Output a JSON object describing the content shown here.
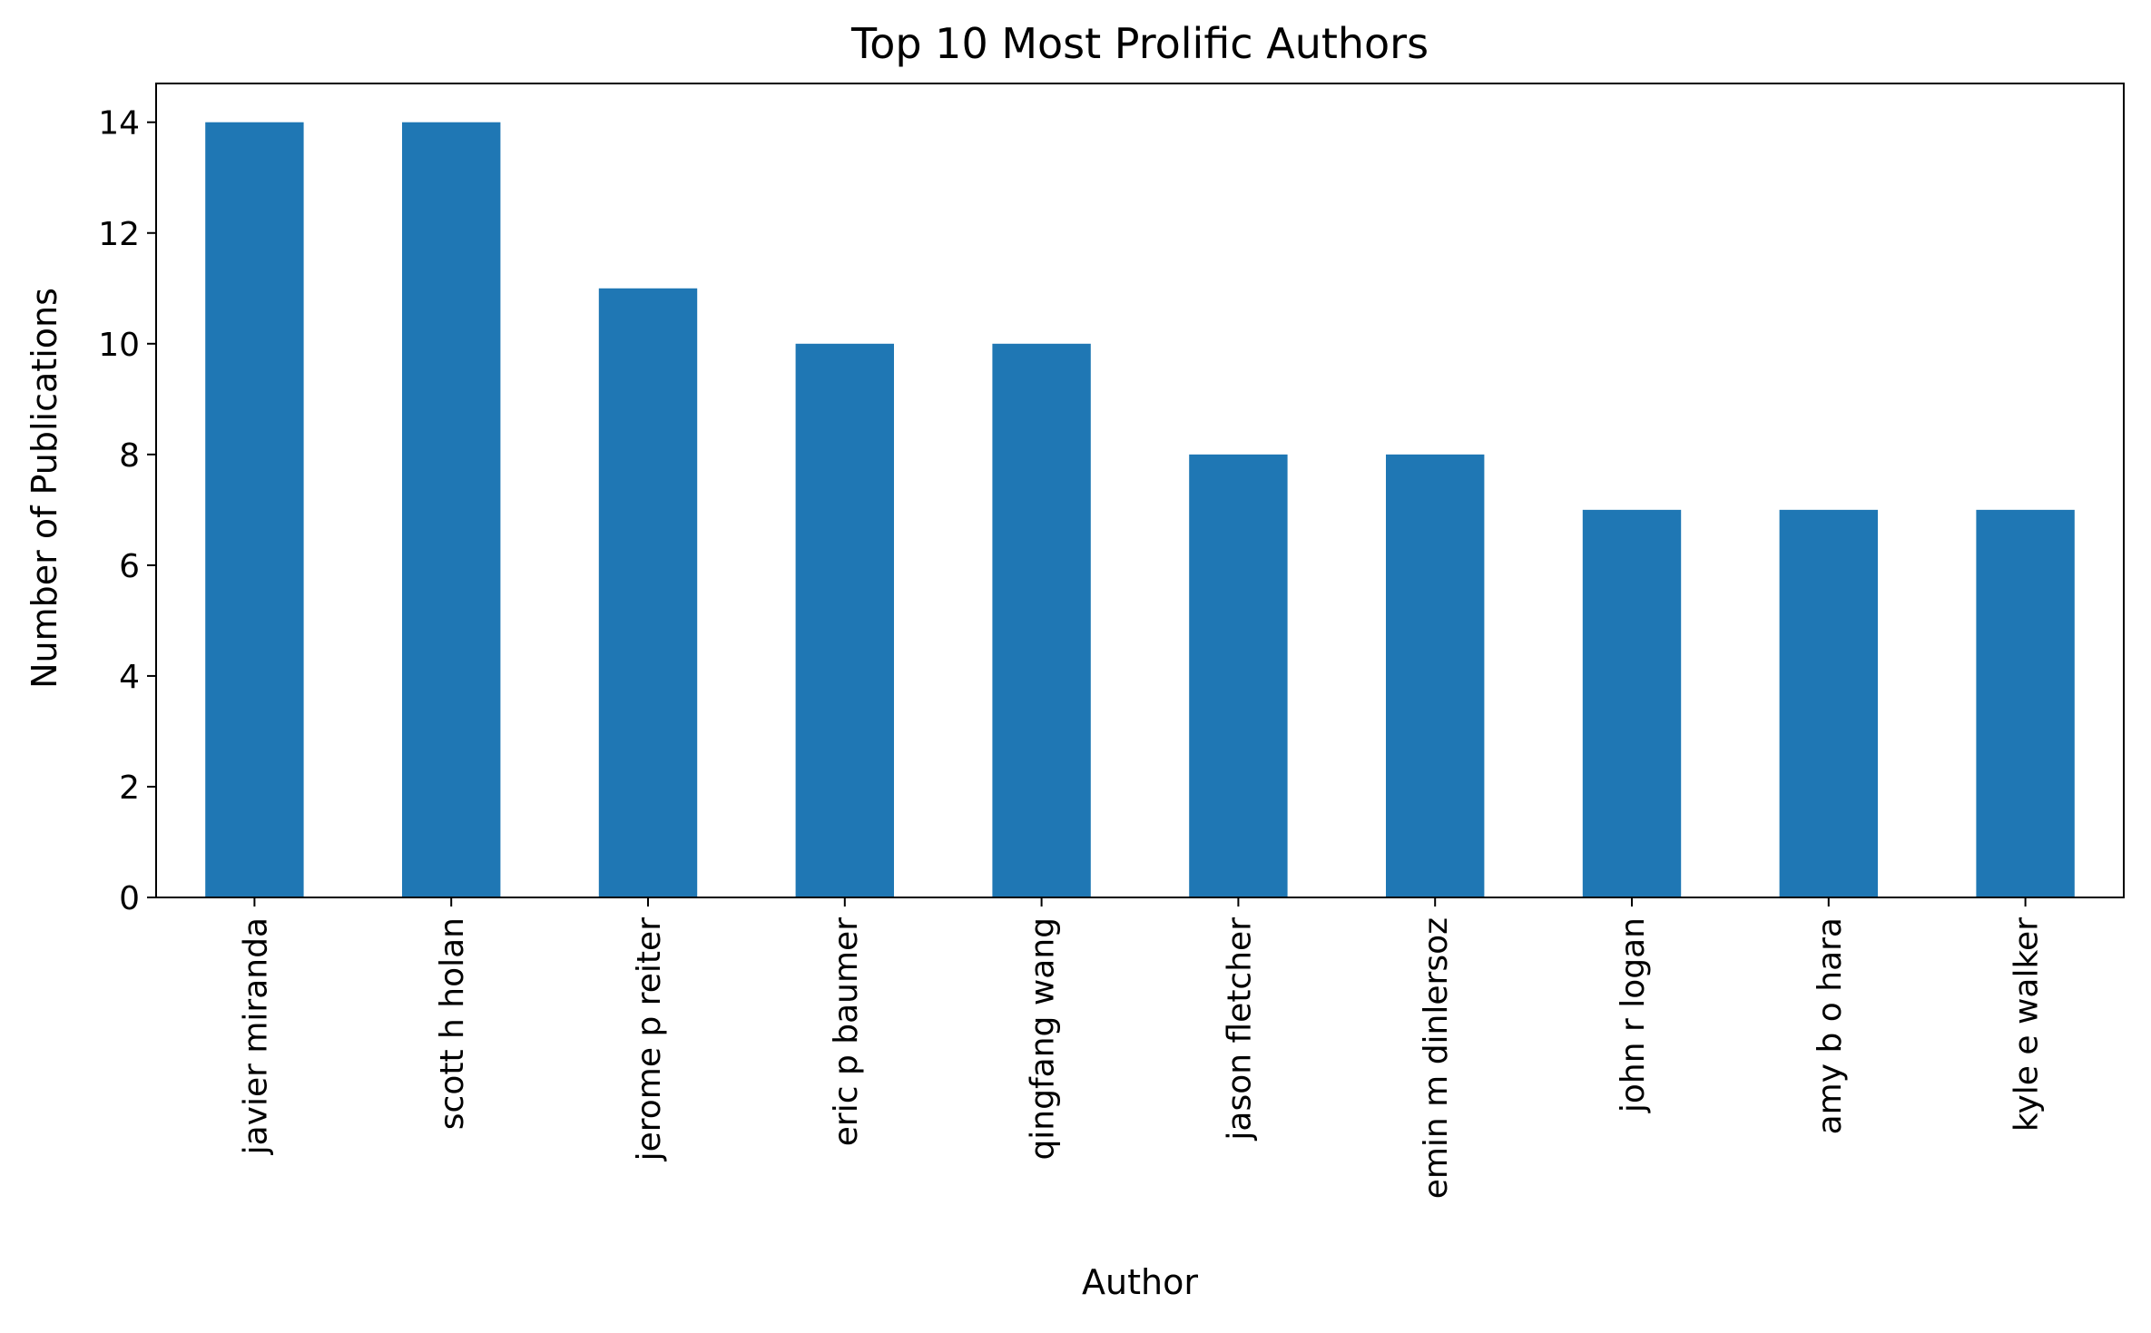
{
  "chart_data": {
    "type": "bar",
    "title": "Top 10 Most Prolific Authors",
    "xlabel": "Author",
    "ylabel": "Number of Publications",
    "categories": [
      "javier miranda",
      "scott h holan",
      "jerome p reiter",
      "eric p baumer",
      "qingfang wang",
      "jason fletcher",
      "emin m dinlersoz",
      "john r logan",
      "amy b o hara",
      "kyle e walker"
    ],
    "values": [
      14,
      14,
      11,
      10,
      10,
      8,
      8,
      7,
      7,
      7
    ],
    "ylim": [
      0,
      14.7
    ],
    "yticks": [
      0,
      2,
      4,
      6,
      8,
      10,
      12,
      14
    ],
    "bar_color": "#1f77b4",
    "grid": false,
    "legend": "none"
  }
}
